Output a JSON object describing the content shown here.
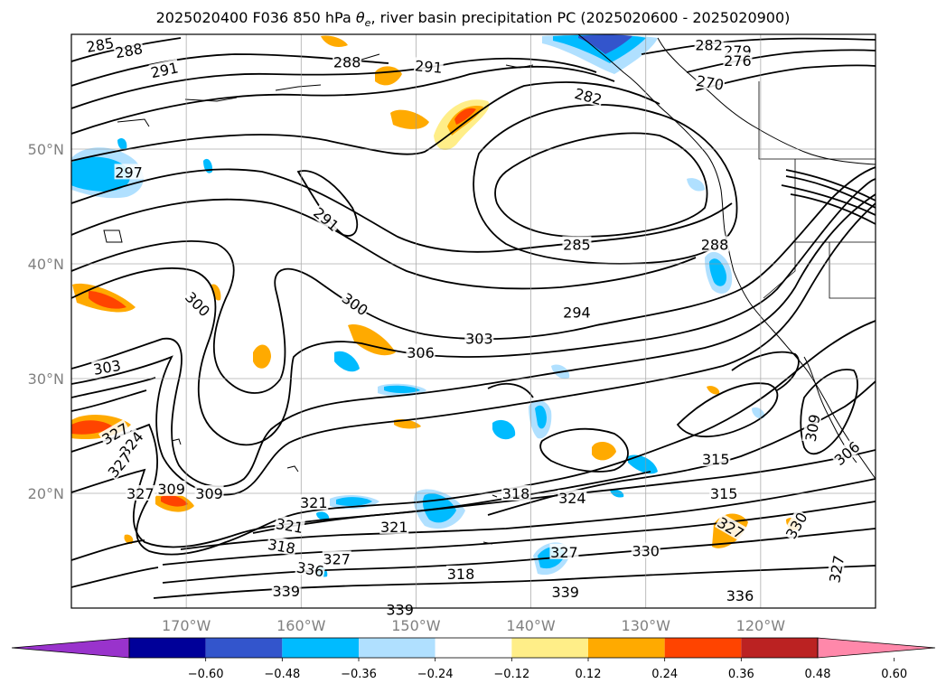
{
  "title": {
    "prefix": "2025020400 F036 850 hPa ",
    "theta_symbol": "θ",
    "theta_subscript": "e",
    "suffix": ", river basin precipitation PC (2025020600 - 2025020900)"
  },
  "map": {
    "projection": "PlateCarree",
    "lon_range": [
      -180,
      -110
    ],
    "lat_range": [
      10,
      60
    ],
    "gridlines": true,
    "lat_ticks": [
      {
        "value": 50,
        "label": "50°N"
      },
      {
        "value": 40,
        "label": "40°N"
      },
      {
        "value": 30,
        "label": "30°N"
      },
      {
        "value": 20,
        "label": "20°N"
      }
    ],
    "lon_ticks": [
      {
        "value": -170,
        "label": "170°W"
      },
      {
        "value": -160,
        "label": "160°W"
      },
      {
        "value": -150,
        "label": "150°W"
      },
      {
        "value": -140,
        "label": "140°W"
      },
      {
        "value": -130,
        "label": "130°W"
      },
      {
        "value": -120,
        "label": "120°W"
      }
    ]
  },
  "contour_labels": [
    {
      "text": "285",
      "lon": -177.5,
      "lat": 59.1,
      "rot": -10
    },
    {
      "text": "288",
      "lon": -175.0,
      "lat": 58.6,
      "rot": -10
    },
    {
      "text": "291",
      "lon": -171.9,
      "lat": 56.9,
      "rot": -12
    },
    {
      "text": "288",
      "lon": -156.0,
      "lat": 57.6,
      "rot": 0
    },
    {
      "text": "291",
      "lon": -148.9,
      "lat": 57.2,
      "rot": 5
    },
    {
      "text": "282",
      "lon": -135.0,
      "lat": 54.6,
      "rot": 15
    },
    {
      "text": "282",
      "lon": -124.5,
      "lat": 59.1,
      "rot": 0
    },
    {
      "text": "279",
      "lon": -122.0,
      "lat": 58.6,
      "rot": 0
    },
    {
      "text": "276",
      "lon": -122.0,
      "lat": 57.7,
      "rot": 0
    },
    {
      "text": "270",
      "lon": -124.4,
      "lat": 55.8,
      "rot": 10
    },
    {
      "text": "297",
      "lon": -175.0,
      "lat": 48.0,
      "rot": 0
    },
    {
      "text": "291",
      "lon": -157.8,
      "lat": 43.9,
      "rot": 40
    },
    {
      "text": "285",
      "lon": -136.0,
      "lat": 41.7,
      "rot": 0
    },
    {
      "text": "288",
      "lon": -124.0,
      "lat": 41.7,
      "rot": 0
    },
    {
      "text": "300",
      "lon": -169.0,
      "lat": 36.5,
      "rot": 45
    },
    {
      "text": "300",
      "lon": -155.3,
      "lat": 36.5,
      "rot": 35
    },
    {
      "text": "294",
      "lon": -136.0,
      "lat": 35.8,
      "rot": 0
    },
    {
      "text": "306",
      "lon": -149.6,
      "lat": 32.3,
      "rot": 0
    },
    {
      "text": "303",
      "lon": -144.5,
      "lat": 33.5,
      "rot": 0
    },
    {
      "text": "303",
      "lon": -176.9,
      "lat": 31.0,
      "rot": -10
    },
    {
      "text": "327",
      "lon": -176.2,
      "lat": 25.2,
      "rot": -30
    },
    {
      "text": "324",
      "lon": -174.8,
      "lat": 24.3,
      "rot": -50
    },
    {
      "text": "327",
      "lon": -175.8,
      "lat": 22.5,
      "rot": -50
    },
    {
      "text": "309",
      "lon": -171.3,
      "lat": 20.4,
      "rot": 0
    },
    {
      "text": "309",
      "lon": -115.5,
      "lat": 25.7,
      "rot": -80
    },
    {
      "text": "306",
      "lon": -112.5,
      "lat": 23.5,
      "rot": -40
    },
    {
      "text": "315",
      "lon": -123.9,
      "lat": 23.0,
      "rot": 0
    },
    {
      "text": "315",
      "lon": -123.2,
      "lat": 20.0,
      "rot": 0
    },
    {
      "text": "327",
      "lon": -174.0,
      "lat": 20.0,
      "rot": 0
    },
    {
      "text": "309",
      "lon": -168.0,
      "lat": 20.0,
      "rot": 0
    },
    {
      "text": "321",
      "lon": -158.9,
      "lat": 19.2,
      "rot": 0
    },
    {
      "text": "318",
      "lon": -141.3,
      "lat": 20.0,
      "rot": 0
    },
    {
      "text": "324",
      "lon": -136.4,
      "lat": 19.6,
      "rot": 0
    },
    {
      "text": "321",
      "lon": -161.0,
      "lat": 17.2,
      "rot": 10
    },
    {
      "text": "321",
      "lon": -151.9,
      "lat": 17.1,
      "rot": 0
    },
    {
      "text": "318",
      "lon": -161.7,
      "lat": 15.4,
      "rot": 10
    },
    {
      "text": "327",
      "lon": -122.6,
      "lat": 17.0,
      "rot": 30
    },
    {
      "text": "330",
      "lon": -116.9,
      "lat": 17.2,
      "rot": -60
    },
    {
      "text": "327",
      "lon": -156.9,
      "lat": 14.3,
      "rot": 0
    },
    {
      "text": "336",
      "lon": -159.2,
      "lat": 13.4,
      "rot": 10
    },
    {
      "text": "327",
      "lon": -137.1,
      "lat": 14.9,
      "rot": 0
    },
    {
      "text": "330",
      "lon": -130.0,
      "lat": 15.0,
      "rot": 0
    },
    {
      "text": "327",
      "lon": -113.4,
      "lat": 13.4,
      "rot": -80
    },
    {
      "text": "318",
      "lon": -146.1,
      "lat": 13.0,
      "rot": 0
    },
    {
      "text": "339",
      "lon": -161.3,
      "lat": 11.5,
      "rot": 0
    },
    {
      "text": "339",
      "lon": -137.0,
      "lat": 11.4,
      "rot": 0
    },
    {
      "text": "336",
      "lon": -121.8,
      "lat": 11.1,
      "rot": 0
    },
    {
      "text": "339",
      "lon": -151.4,
      "lat": 9.9,
      "rot": 0
    }
  ],
  "colorbar": {
    "extend": "both",
    "levels": [
      -0.6,
      -0.48,
      -0.36,
      -0.24,
      -0.12,
      0.12,
      0.24,
      0.36,
      0.48,
      0.6
    ],
    "tick_labels": [
      "−0.60",
      "−0.48",
      "−0.36",
      "−0.24",
      "−0.12",
      "0.12",
      "0.24",
      "0.36",
      "0.48",
      "0.60"
    ],
    "colors": [
      "#9933cc",
      "#000099",
      "#3355cc",
      "#00bbff",
      "#b0e0ff",
      "#ffffff",
      "#ffee88",
      "#ffaa00",
      "#ff4400",
      "#bb2222",
      "#ff88aa"
    ]
  },
  "styles": {
    "contour_color": "#000000",
    "grid_color": "#999999",
    "coast_color": "#000000",
    "tick_color": "#808080"
  }
}
